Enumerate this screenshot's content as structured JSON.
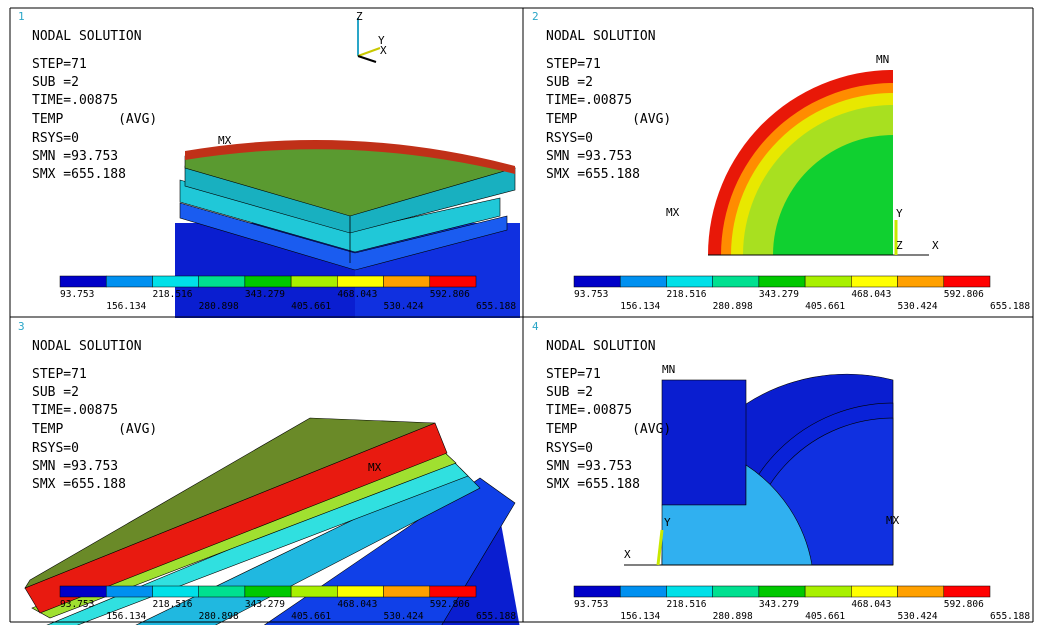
{
  "panels": [
    {
      "number": "1",
      "title": "NODAL SOLUTION",
      "lines": [
        "STEP=71",
        "SUB =2",
        "TIME=.00875",
        "TEMP       (AVG)",
        "RSYS=0",
        "SMN =93.753",
        "SMX =655.188"
      ],
      "labels": [
        "MX",
        "Z",
        "Y",
        "X"
      ]
    },
    {
      "number": "2",
      "title": "NODAL SOLUTION",
      "lines": [
        "STEP=71",
        "SUB =2",
        "TIME=.00875",
        "TEMP       (AVG)",
        "RSYS=0",
        "SMN =93.753",
        "SMX =655.188"
      ],
      "labels": [
        "MN",
        "MX",
        "Y",
        "Z",
        "X"
      ]
    },
    {
      "number": "3",
      "title": "NODAL SOLUTION",
      "lines": [
        "STEP=71",
        "SUB =2",
        "TIME=.00875",
        "TEMP       (AVG)",
        "RSYS=0",
        "SMN =93.753",
        "SMX =655.188"
      ],
      "labels": [
        "MX"
      ]
    },
    {
      "number": "4",
      "title": "NODAL SOLUTION",
      "lines": [
        "STEP=71",
        "SUB =2",
        "TIME=.00875",
        "TEMP       (AVG)",
        "RSYS=0",
        "SMN =93.753",
        "SMX =655.188"
      ],
      "labels": [
        "MN",
        "MX",
        "Y",
        "X"
      ]
    }
  ],
  "legend": {
    "upper": [
      "93.753",
      "218.516",
      "343.279",
      "468.043",
      "592.806"
    ],
    "lower": [
      "156.134",
      "280.898",
      "405.661",
      "530.424",
      "655.188"
    ]
  }
}
